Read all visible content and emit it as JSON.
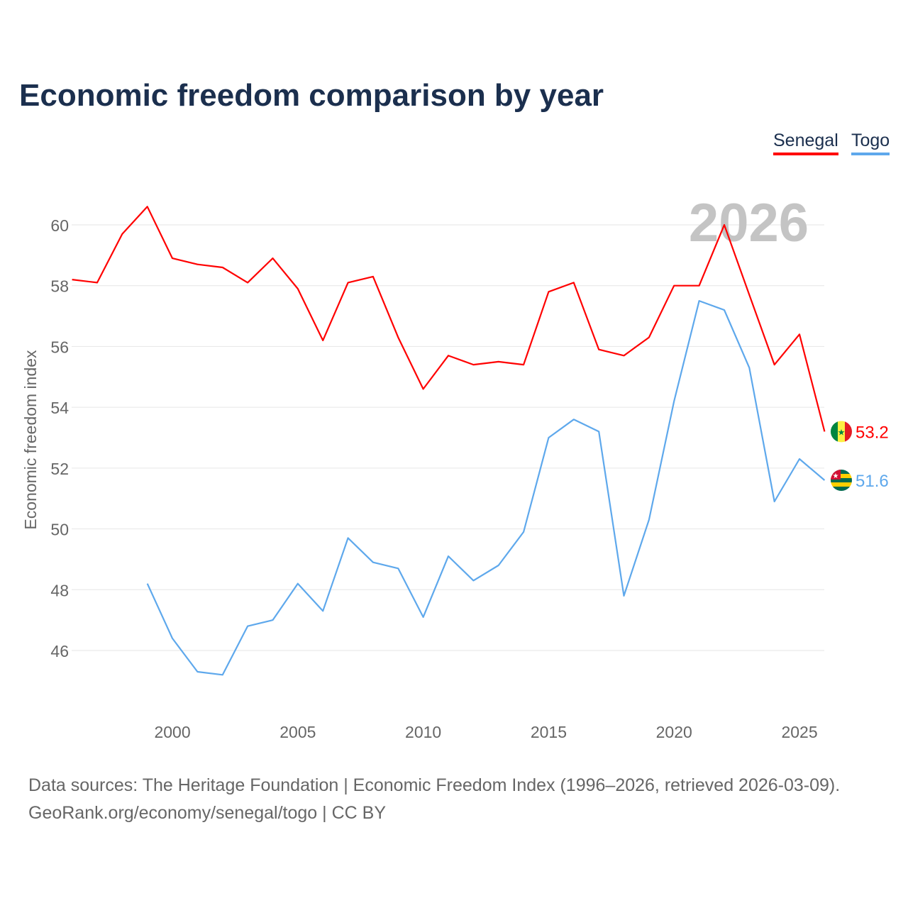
{
  "title": "Economic freedom comparison by year",
  "footer": {
    "line1": "Data sources: The Heritage Foundation | Economic Freedom Index (1996–2026, retrieved 2026-03-09).",
    "line2": "GeoRank.org/economy/senegal/togo | CC BY"
  },
  "chart_data": {
    "type": "line",
    "title": "Economic freedom comparison by year",
    "xlabel": "",
    "ylabel": "Economic freedom index",
    "watermark_year": "2026",
    "xlim": [
      1996,
      2026
    ],
    "ylim": [
      43.8,
      61.6
    ],
    "x_ticks": [
      2000,
      2005,
      2010,
      2015,
      2020,
      2025
    ],
    "y_ticks": [
      46,
      48,
      50,
      52,
      54,
      56,
      58,
      60
    ],
    "grid": true,
    "legend_position": "top-right",
    "series": [
      {
        "name": "Senegal",
        "color": "#ff0000",
        "end_label": "53.2",
        "flag": "senegal-flag",
        "x": [
          1996,
          1997,
          1998,
          1999,
          2000,
          2001,
          2002,
          2003,
          2004,
          2005,
          2006,
          2007,
          2008,
          2009,
          2010,
          2011,
          2012,
          2013,
          2014,
          2015,
          2016,
          2017,
          2018,
          2019,
          2020,
          2021,
          2022,
          2023,
          2024,
          2025,
          2026
        ],
        "values": [
          58.2,
          58.1,
          59.7,
          60.6,
          58.9,
          58.7,
          58.6,
          58.1,
          58.9,
          57.9,
          56.2,
          58.1,
          58.3,
          56.3,
          54.6,
          55.7,
          55.4,
          55.5,
          55.4,
          57.8,
          58.1,
          55.9,
          55.7,
          56.3,
          58.0,
          58.0,
          60.0,
          57.7,
          55.4,
          56.4,
          53.2
        ]
      },
      {
        "name": "Togo",
        "color": "#5ea8ec",
        "end_label": "51.6",
        "flag": "togo-flag",
        "x": [
          1999,
          2000,
          2001,
          2002,
          2003,
          2004,
          2005,
          2006,
          2007,
          2008,
          2009,
          2010,
          2011,
          2012,
          2013,
          2014,
          2015,
          2016,
          2017,
          2018,
          2019,
          2020,
          2021,
          2022,
          2023,
          2024,
          2025,
          2026
        ],
        "values": [
          48.2,
          46.4,
          45.3,
          45.2,
          46.8,
          47.0,
          48.2,
          47.3,
          49.7,
          48.9,
          48.7,
          47.1,
          49.1,
          48.3,
          48.8,
          49.9,
          53.0,
          53.6,
          53.2,
          47.8,
          50.3,
          54.2,
          57.5,
          57.2,
          55.3,
          50.9,
          52.3,
          51.6
        ]
      }
    ]
  }
}
